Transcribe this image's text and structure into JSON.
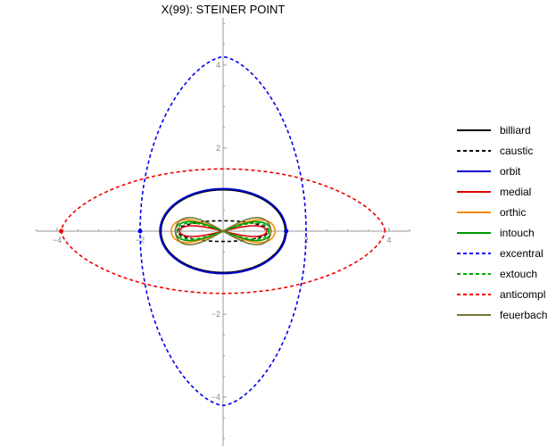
{
  "chart_data": {
    "type": "line",
    "title": "X(99): STEINER POINT",
    "xlabel": "",
    "ylabel": "",
    "xlim": [
      -4.5,
      4.5
    ],
    "ylim": [
      -5.2,
      5.2
    ],
    "x_ticks": [
      -4,
      -2,
      2,
      4
    ],
    "y_ticks": [
      -4,
      -2,
      2,
      4
    ],
    "tick_labels_x": [
      "-4",
      "-2",
      "2",
      "4"
    ],
    "tick_labels_y": [
      "-4",
      "-2",
      "2",
      "4"
    ],
    "grid": false,
    "legend_position": "right",
    "series": [
      {
        "name": "billiard",
        "color": "#000000",
        "dash": "solid",
        "shape": "ellipse",
        "a": 1.5,
        "b": 1.0
      },
      {
        "name": "caustic",
        "color": "#000000",
        "dash": "dashed",
        "shape": "ellipse",
        "a": 1.1,
        "b": 0.25
      },
      {
        "name": "orbit",
        "color": "#0000cc",
        "dash": "solid",
        "shape": "ellipse",
        "a": 1.52,
        "b": 1.02
      },
      {
        "name": "medial",
        "color": "#dd0000",
        "dash": "solid",
        "shape": "figure8",
        "a": 1.05,
        "b": 0.2
      },
      {
        "name": "orthic",
        "color": "#ff8800",
        "dash": "solid",
        "shape": "figure8",
        "a": 1.25,
        "b": 0.42
      },
      {
        "name": "intouch",
        "color": "#009900",
        "dash": "solid",
        "shape": "figure8",
        "a": 1.15,
        "b": 0.35
      },
      {
        "name": "excentral",
        "color": "#0000ee",
        "dash": "dashed",
        "shape": "lens",
        "a": 2.0,
        "b": 4.2
      },
      {
        "name": "extouch",
        "color": "#00aa00",
        "dash": "dashed",
        "shape": "figure8",
        "a": 1.1,
        "b": 0.3
      },
      {
        "name": "anticompl",
        "color": "#ee0000",
        "dash": "dashed",
        "shape": "lemon",
        "a": 3.9,
        "b": 1.5
      },
      {
        "name": "feuerbach",
        "color": "#777733",
        "dash": "solid",
        "shape": "figure8",
        "a": 1.15,
        "b": 0.5
      }
    ],
    "points": [
      {
        "x": -3.9,
        "y": 0,
        "color": "#ee0000"
      },
      {
        "x": -2.0,
        "y": 0,
        "color": "#0000ee"
      },
      {
        "x": 1.52,
        "y": 0,
        "color": "#0000cc"
      }
    ]
  }
}
